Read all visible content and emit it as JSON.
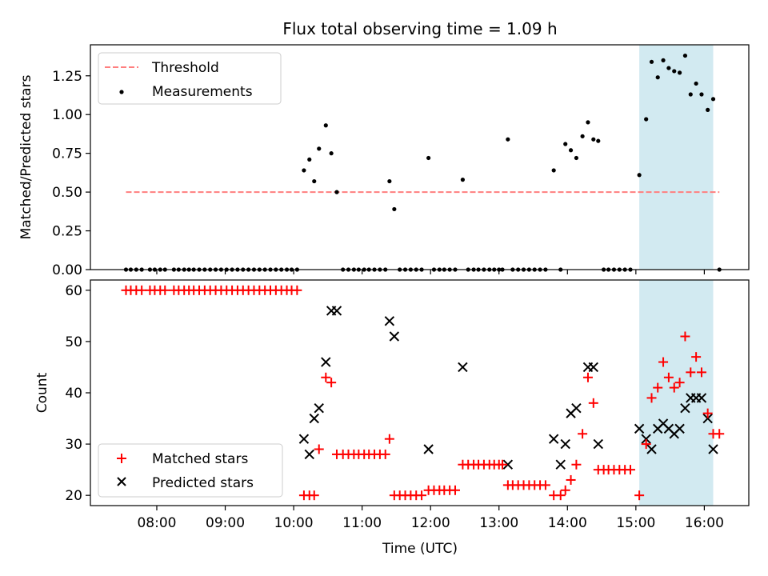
{
  "title": "Flux total observing time = 1.09 h",
  "colors": {
    "threshold": "#ff7f7f",
    "measurement": "#000000",
    "matched": "#ff0000",
    "predicted": "#000000",
    "span": "#add8e6"
  },
  "chart_data": [
    {
      "type": "scatter",
      "panel": "top",
      "xlabel": "",
      "ylabel": "Matched/Predicted stars",
      "xlim_hours": [
        7.03,
        16.65
      ],
      "ylim": [
        0,
        1.45
      ],
      "yticks": [
        0.0,
        0.25,
        0.5,
        0.75,
        1.0,
        1.25
      ],
      "ytick_labels": [
        "0.00",
        "0.25",
        "0.50",
        "0.75",
        "1.00",
        "1.25"
      ],
      "highlight_span_hours": [
        15.05,
        16.13
      ],
      "legend": {
        "placement": "upper left",
        "entries": [
          "Threshold",
          "Measurements"
        ]
      },
      "series": [
        {
          "name": "Threshold",
          "kind": "dashed-line",
          "x": [
            7.55,
            16.22
          ],
          "y": [
            0.5,
            0.5
          ]
        },
        {
          "name": "Measurements",
          "kind": "points",
          "x": [
            7.55,
            7.62,
            7.7,
            7.78,
            7.9,
            7.97,
            8.05,
            8.12,
            8.25,
            8.32,
            8.4,
            8.47,
            8.54,
            8.62,
            8.7,
            8.78,
            8.86,
            8.94,
            9.02,
            9.1,
            9.18,
            9.26,
            9.34,
            9.42,
            9.5,
            9.58,
            9.66,
            9.74,
            9.82,
            9.9,
            9.97,
            10.05,
            10.15,
            10.23,
            10.3,
            10.37,
            10.47,
            10.55,
            10.63,
            10.72,
            10.8,
            10.88,
            10.95,
            11.03,
            11.1,
            11.18,
            11.26,
            11.34,
            11.4,
            11.47,
            11.55,
            11.63,
            11.71,
            11.79,
            11.87,
            11.97,
            12.05,
            12.13,
            12.2,
            12.28,
            12.36,
            12.47,
            12.55,
            12.63,
            12.7,
            12.78,
            12.86,
            12.93,
            13.0,
            13.05,
            13.13,
            13.2,
            13.28,
            13.36,
            13.44,
            13.52,
            13.6,
            13.68,
            13.8,
            13.9,
            13.97,
            14.05,
            14.13,
            14.22,
            14.3,
            14.38,
            14.45,
            14.53,
            14.6,
            14.68,
            14.76,
            14.84,
            14.92,
            15.05,
            15.15,
            15.23,
            15.32,
            15.4,
            15.48,
            15.56,
            15.64,
            15.72,
            15.8,
            15.88,
            15.96,
            16.05,
            16.13,
            16.22
          ],
          "y": [
            0,
            0,
            0,
            0,
            0,
            0,
            0,
            0,
            0,
            0,
            0,
            0,
            0,
            0,
            0,
            0,
            0,
            0,
            0,
            0,
            0,
            0,
            0,
            0,
            0,
            0,
            0,
            0,
            0,
            0,
            0,
            0,
            0.64,
            0.71,
            0.57,
            0.78,
            0.93,
            0.75,
            0.5,
            0,
            0,
            0,
            0,
            0,
            0,
            0,
            0,
            0,
            0.57,
            0.39,
            0,
            0,
            0,
            0,
            0,
            0.72,
            0,
            0,
            0,
            0,
            0,
            0.58,
            0,
            0,
            0,
            0,
            0,
            0,
            0,
            0,
            0.84,
            0,
            0,
            0,
            0,
            0,
            0,
            0,
            0.64,
            0,
            0.81,
            0.77,
            0.72,
            0.86,
            0.95,
            0.84,
            0.83,
            0,
            0,
            0,
            0,
            0,
            0,
            0.61,
            0.97,
            1.34,
            1.24,
            1.35,
            1.3,
            1.28,
            1.27,
            1.38,
            1.13,
            1.2,
            1.13,
            1.03,
            1.1,
            0
          ]
        }
      ]
    },
    {
      "type": "scatter",
      "panel": "bottom",
      "xlabel": "Time (UTC)",
      "ylabel": "Count",
      "xlim_hours": [
        7.03,
        16.65
      ],
      "ylim": [
        18,
        62
      ],
      "xticks_hours": [
        8,
        9,
        10,
        11,
        12,
        13,
        14,
        15,
        16
      ],
      "xtick_labels": [
        "08:00",
        "09:00",
        "10:00",
        "11:00",
        "12:00",
        "13:00",
        "14:00",
        "15:00",
        "16:00"
      ],
      "yticks": [
        20,
        30,
        40,
        50,
        60
      ],
      "ytick_labels": [
        "20",
        "30",
        "40",
        "50",
        "60"
      ],
      "highlight_span_hours": [
        15.05,
        16.13
      ],
      "legend": {
        "placement": "lower left",
        "entries": [
          "Matched stars",
          "Predicted stars"
        ]
      },
      "series": [
        {
          "name": "Matched stars",
          "marker": "+",
          "x": [
            7.55,
            7.62,
            7.7,
            7.78,
            7.9,
            7.97,
            8.05,
            8.12,
            8.25,
            8.32,
            8.4,
            8.47,
            8.54,
            8.62,
            8.7,
            8.78,
            8.86,
            8.94,
            9.02,
            9.1,
            9.18,
            9.26,
            9.34,
            9.42,
            9.5,
            9.58,
            9.66,
            9.74,
            9.82,
            9.9,
            9.97,
            10.05,
            10.15,
            10.23,
            10.3,
            10.37,
            10.47,
            10.55,
            10.63,
            10.72,
            10.8,
            10.88,
            10.95,
            11.03,
            11.1,
            11.18,
            11.26,
            11.34,
            11.4,
            11.47,
            11.55,
            11.63,
            11.71,
            11.79,
            11.87,
            11.97,
            12.05,
            12.13,
            12.2,
            12.28,
            12.36,
            12.47,
            12.55,
            12.63,
            12.7,
            12.78,
            12.86,
            12.93,
            13.0,
            13.05,
            13.13,
            13.2,
            13.28,
            13.36,
            13.44,
            13.52,
            13.6,
            13.68,
            13.8,
            13.9,
            13.97,
            14.05,
            14.13,
            14.22,
            14.3,
            14.38,
            14.45,
            14.53,
            14.6,
            14.68,
            14.76,
            14.84,
            14.92,
            15.05,
            15.15,
            15.23,
            15.32,
            15.4,
            15.48,
            15.56,
            15.64,
            15.72,
            15.8,
            15.88,
            15.96,
            16.05,
            16.13,
            16.22
          ],
          "y": [
            60,
            60,
            60,
            60,
            60,
            60,
            60,
            60,
            60,
            60,
            60,
            60,
            60,
            60,
            60,
            60,
            60,
            60,
            60,
            60,
            60,
            60,
            60,
            60,
            60,
            60,
            60,
            60,
            60,
            60,
            60,
            60,
            20,
            20,
            20,
            29,
            43,
            42,
            28,
            28,
            28,
            28,
            28,
            28,
            28,
            28,
            28,
            28,
            31,
            20,
            20,
            20,
            20,
            20,
            20,
            21,
            21,
            21,
            21,
            21,
            21,
            26,
            26,
            26,
            26,
            26,
            26,
            26,
            26,
            26,
            22,
            22,
            22,
            22,
            22,
            22,
            22,
            22,
            20,
            20,
            21,
            23,
            26,
            32,
            43,
            38,
            25,
            25,
            25,
            25,
            25,
            25,
            25,
            20,
            30,
            39,
            41,
            46,
            43,
            41,
            42,
            51,
            44,
            47,
            44,
            36,
            32,
            32
          ]
        },
        {
          "name": "Predicted stars",
          "marker": "x",
          "x": [
            10.15,
            10.23,
            10.3,
            10.37,
            10.47,
            10.55,
            10.63,
            11.4,
            11.47,
            11.97,
            12.47,
            13.13,
            13.8,
            13.9,
            13.97,
            14.05,
            14.13,
            14.3,
            14.38,
            14.45,
            15.05,
            15.15,
            15.23,
            15.32,
            15.4,
            15.48,
            15.56,
            15.64,
            15.72,
            15.8,
            15.88,
            15.96,
            16.05,
            16.13
          ],
          "y": [
            31,
            28,
            35,
            37,
            46,
            56,
            56,
            54,
            51,
            29,
            45,
            26,
            31,
            26,
            30,
            36,
            37,
            45,
            45,
            30,
            33,
            31,
            29,
            33,
            34,
            33,
            32,
            33,
            37,
            39,
            39,
            39,
            35,
            29
          ]
        }
      ]
    }
  ]
}
